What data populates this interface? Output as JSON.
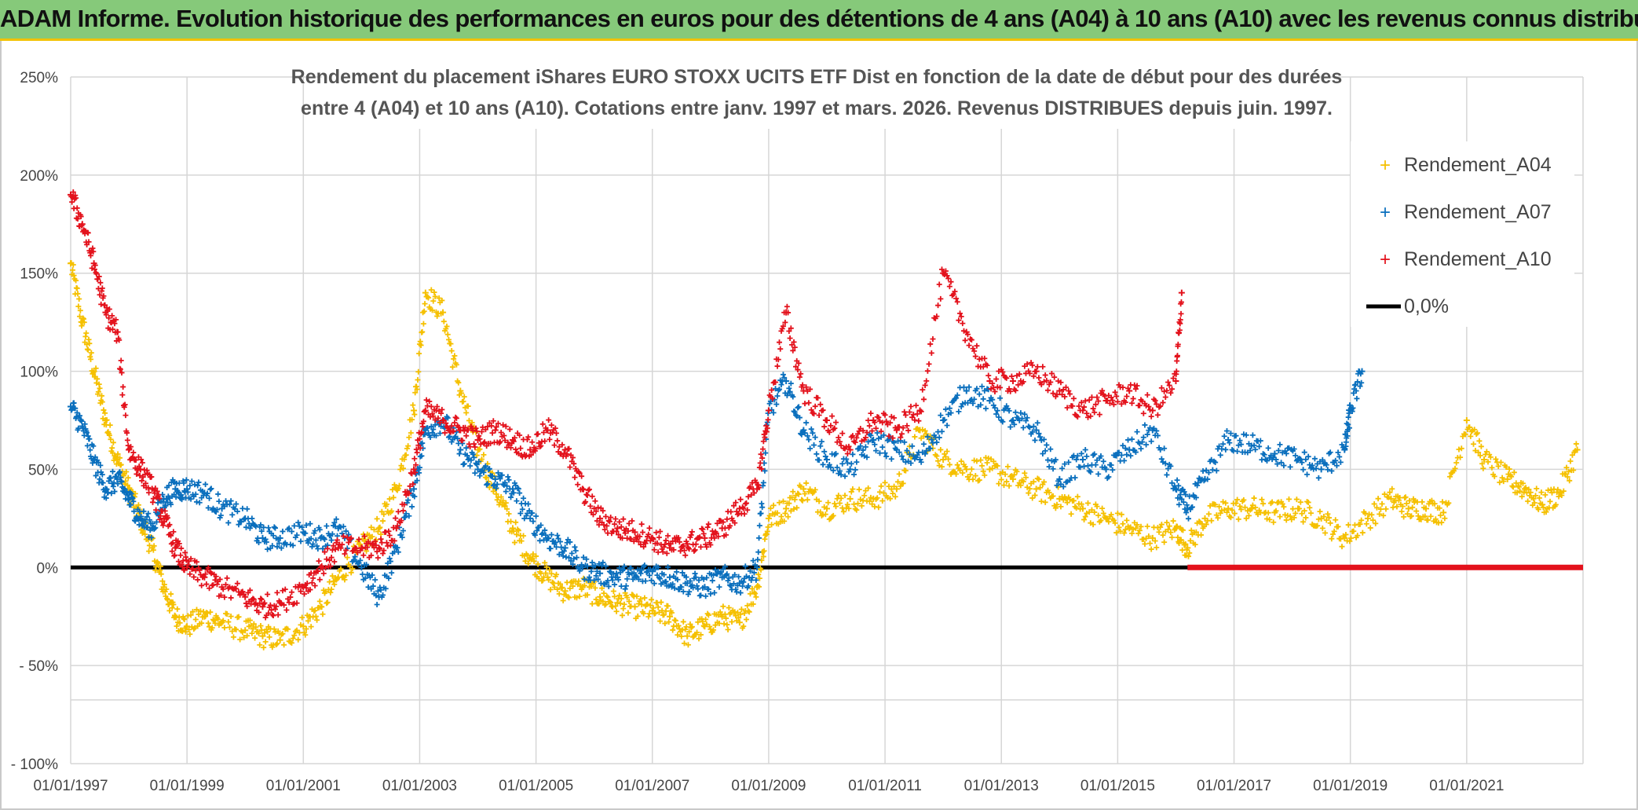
{
  "header": {
    "title": "ADAM Informe. Evolution historique des performances en euros pour des détentions de 4 ans (A04) à 10 ans (A10) avec les revenus connus distribués"
  },
  "colors": {
    "banner": "#86c97a",
    "A04": "#f5c000",
    "A07": "#0a6fbd",
    "A10": "#e3121c",
    "zero": "#000000"
  },
  "chart_data": {
    "type": "scatter",
    "title_line1": "Rendement du placement iShares EURO STOXX UCITS ETF Dist en fonction de la date de début pour des durées",
    "title_line2": "entre 4 (A04) et 10 ans (A10). Cotations entre janv. 1997 et mars. 2026. Revenus DISTRIBUES depuis juin. 1997.",
    "y_ticks": [
      "250%",
      "200%",
      "150%",
      "100%",
      "50%",
      "0%",
      "- 50%",
      "- 100%"
    ],
    "x_ticks": [
      "01/01/1997",
      "01/01/1999",
      "01/01/2001",
      "01/01/2003",
      "01/01/2005",
      "01/01/2007",
      "01/01/2009",
      "01/01/2011",
      "01/01/2013",
      "01/01/2015",
      "01/01/2017",
      "01/01/2019",
      "01/01/2021"
    ],
    "xlim": [
      1997.0,
      2023.0
    ],
    "ylim": [
      -100,
      250
    ],
    "grid": true,
    "legend_position": "top-right",
    "legend": [
      "Rendement_A04",
      "Rendement_A07",
      "Rendement_A10",
      "0,0%"
    ],
    "series": [
      {
        "name": "Rendement_A04",
        "x": [
          1997.0,
          1997.2,
          1997.4,
          1997.6,
          1997.8,
          1998.0,
          1998.2,
          1998.4,
          1998.6,
          1998.8,
          1999.0,
          1999.3,
          1999.6,
          2000.0,
          2000.3,
          2000.6,
          2001.0,
          2001.3,
          2001.6,
          2002.0,
          2002.3,
          2002.6,
          2002.9,
          2003.1,
          2003.4,
          2003.7,
          2004.0,
          2004.3,
          2004.6,
          2004.9,
          2005.2,
          2005.5,
          2005.8,
          2006.1,
          2006.4,
          2006.7,
          2007.0,
          2007.3,
          2007.6,
          2007.9,
          2008.2,
          2008.5,
          2008.8,
          2009.0,
          2009.3,
          2009.6,
          2010.0,
          2010.4,
          2010.8,
          2011.2,
          2011.6,
          2012.0,
          2012.4,
          2012.8,
          2013.2,
          2013.6,
          2014.0,
          2014.4,
          2014.8,
          2015.2,
          2015.6,
          2016.0,
          2016.2,
          2016.5,
          2016.9,
          2017.3,
          2017.7,
          2018.1,
          2018.5,
          2018.9,
          2019.3,
          2019.7,
          2020.0,
          2020.3,
          2020.6,
          2021.0,
          2021.3,
          2021.7,
          2022.0,
          2022.3,
          2022.6,
          2022.9
        ],
        "y": [
          155,
          125,
          100,
          75,
          55,
          40,
          25,
          10,
          -10,
          -25,
          -30,
          -25,
          -28,
          -32,
          -35,
          -37,
          -30,
          -20,
          -5,
          10,
          20,
          40,
          80,
          140,
          130,
          90,
          60,
          40,
          20,
          5,
          -5,
          -12,
          -10,
          -15,
          -18,
          -20,
          -22,
          -25,
          -35,
          -30,
          -25,
          -28,
          -10,
          25,
          30,
          40,
          30,
          35,
          35,
          40,
          70,
          55,
          50,
          50,
          45,
          40,
          35,
          30,
          25,
          20,
          15,
          20,
          10,
          25,
          30,
          30,
          28,
          30,
          25,
          15,
          25,
          35,
          30,
          30,
          28,
          75,
          55,
          45,
          40,
          32,
          38,
          60
        ]
      },
      {
        "name": "Rendement_A07",
        "x": [
          1997.0,
          1997.2,
          1997.4,
          1997.6,
          1997.8,
          1998.0,
          1998.2,
          1998.4,
          1998.6,
          1998.8,
          1999.0,
          1999.3,
          1999.6,
          2000.0,
          2000.3,
          2000.6,
          2001.0,
          2001.3,
          2001.6,
          2002.0,
          2002.3,
          2002.6,
          2002.9,
          2003.1,
          2003.4,
          2003.7,
          2004.0,
          2004.3,
          2004.6,
          2004.9,
          2005.2,
          2005.5,
          2005.8,
          2006.1,
          2006.4,
          2006.7,
          2007.0,
          2007.3,
          2007.6,
          2007.9,
          2008.2,
          2008.5,
          2008.8,
          2009.0,
          2009.3,
          2009.6,
          2010.0,
          2010.4,
          2010.8,
          2011.2,
          2011.6,
          2012.0,
          2012.4,
          2012.8,
          2013.2,
          2013.6,
          2014.0,
          2014.4,
          2014.8,
          2015.2,
          2015.6,
          2016.0,
          2016.2,
          2016.5,
          2016.9,
          2017.3,
          2017.7,
          2018.1,
          2018.5,
          2018.9,
          2019.0,
          2019.2
        ],
        "y": [
          82,
          72,
          55,
          40,
          45,
          35,
          25,
          20,
          35,
          40,
          40,
          38,
          30,
          25,
          15,
          15,
          18,
          15,
          20,
          0,
          -15,
          10,
          40,
          70,
          75,
          60,
          50,
          45,
          40,
          25,
          15,
          10,
          0,
          -3,
          -5,
          -5,
          -2,
          -5,
          -8,
          -10,
          -5,
          -8,
          0,
          80,
          95,
          70,
          55,
          50,
          65,
          60,
          55,
          75,
          90,
          85,
          75,
          70,
          45,
          55,
          50,
          60,
          70,
          40,
          30,
          45,
          65,
          62,
          58,
          55,
          50,
          60,
          80,
          100
        ]
      },
      {
        "name": "Rendement_A10",
        "x": [
          1997.0,
          1997.2,
          1997.4,
          1997.6,
          1997.8,
          1998.0,
          1998.2,
          1998.4,
          1998.6,
          1998.8,
          1999.0,
          1999.3,
          1999.6,
          2000.0,
          2000.3,
          2000.6,
          2001.0,
          2001.3,
          2001.6,
          2002.0,
          2002.3,
          2002.6,
          2002.9,
          2003.1,
          2003.4,
          2003.7,
          2004.0,
          2004.3,
          2004.6,
          2004.9,
          2005.2,
          2005.5,
          2005.8,
          2006.1,
          2006.4,
          2006.7,
          2007.0,
          2007.3,
          2007.6,
          2007.9,
          2008.2,
          2008.5,
          2008.8,
          2009.0,
          2009.3,
          2009.6,
          2010.0,
          2010.4,
          2010.8,
          2011.2,
          2011.6,
          2012.0,
          2012.4,
          2012.8,
          2013.2,
          2013.6,
          2014.0,
          2014.4,
          2014.8,
          2015.2,
          2015.6,
          2016.0,
          2016.1
        ],
        "y": [
          190,
          175,
          155,
          130,
          120,
          60,
          50,
          40,
          25,
          10,
          0,
          -5,
          -10,
          -15,
          -20,
          -18,
          -10,
          0,
          10,
          10,
          10,
          20,
          50,
          80,
          75,
          70,
          65,
          70,
          65,
          60,
          70,
          60,
          40,
          25,
          20,
          18,
          15,
          10,
          12,
          15,
          20,
          30,
          40,
          80,
          130,
          90,
          75,
          60,
          75,
          70,
          80,
          150,
          120,
          95,
          95,
          100,
          90,
          80,
          85,
          90,
          80,
          95,
          140
        ]
      }
    ],
    "zero_line": [
      {
        "name": "0,0%",
        "x": [
          1997.0,
          2023.0
        ],
        "y": [
          0,
          0
        ],
        "color": "#000000"
      },
      {
        "name": "",
        "x": [
          2016.2,
          2023.0
        ],
        "y": [
          0,
          0
        ],
        "color": "#e3121c"
      }
    ]
  }
}
